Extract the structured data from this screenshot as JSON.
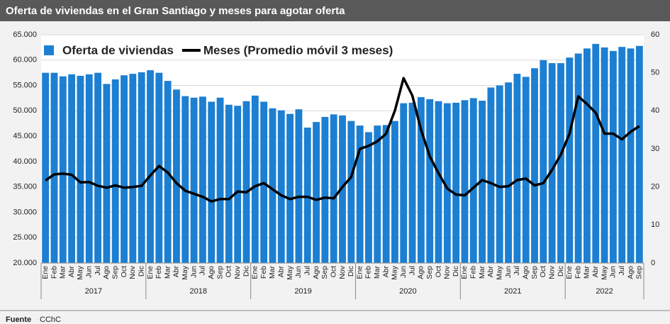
{
  "chart_data": {
    "type": "bar",
    "title": "Oferta de viviendas en el Gran Santiago y meses para agotar oferta",
    "categories": [
      "Ene",
      "Feb",
      "Mar",
      "Abr",
      "May",
      "Jun",
      "Jul",
      "Ago",
      "Sep",
      "Oct",
      "Nov",
      "Dic",
      "Ene",
      "Feb",
      "Mar",
      "Abr",
      "May",
      "Jun",
      "Jul",
      "Ago",
      "Sep",
      "Oct",
      "Nov",
      "Dic",
      "Ene",
      "Feb",
      "Mar",
      "Abr",
      "May",
      "Jun",
      "Jul",
      "Ago",
      "Sep",
      "Oct",
      "Nov",
      "Dic",
      "Ene",
      "Feb",
      "Mar",
      "Abr",
      "May",
      "Jun",
      "Jul",
      "Ago",
      "Sep",
      "Oct",
      "Nov",
      "Dic",
      "Ene",
      "Feb",
      "Mar",
      "Abr",
      "May",
      "Jun",
      "Jul",
      "Ago",
      "Sep",
      "Oct",
      "Nov",
      "Dic",
      "Ene",
      "Feb",
      "Mar",
      "Abr",
      "May",
      "Jun",
      "Jul",
      "Ago",
      "Sep"
    ],
    "groups": [
      "2017",
      "2018",
      "2019",
      "2020",
      "2021",
      "2022"
    ],
    "series": [
      {
        "name": "Oferta de viviendas",
        "type": "bar",
        "color": "#1c7fd2",
        "values": [
          57500,
          57500,
          56800,
          57200,
          56900,
          57200,
          57500,
          55300,
          56200,
          57000,
          57300,
          57600,
          58000,
          57500,
          55900,
          54200,
          52900,
          52600,
          52800,
          51800,
          52600,
          51200,
          51000,
          51900,
          53000,
          51800,
          50500,
          50100,
          49400,
          50300,
          46700,
          47800,
          48800,
          49300,
          49100,
          48000,
          47100,
          45800,
          47100,
          47200,
          48000,
          51500,
          51600,
          52700,
          52300,
          51900,
          51500,
          51600,
          52100,
          52500,
          52000,
          54600,
          55000,
          55600,
          57300,
          56700,
          58400,
          60000,
          59400,
          59400,
          60500,
          61300,
          62300,
          63200,
          62500,
          61800,
          62600,
          62300,
          62800
        ]
      },
      {
        "name": "Meses (Promedio móvil 3 meses)",
        "type": "line",
        "axis": "y2",
        "color": "#000000",
        "values": [
          21.7,
          23.3,
          23.5,
          23.2,
          21.2,
          21.3,
          20.3,
          19.8,
          20.4,
          19.8,
          20.0,
          20.3,
          23.0,
          25.5,
          23.8,
          21.0,
          19.0,
          18.2,
          17.4,
          16.2,
          16.8,
          16.8,
          18.8,
          18.6,
          20.2,
          21.0,
          19.4,
          17.8,
          16.8,
          17.4,
          17.4,
          16.6,
          17.2,
          17.0,
          20.0,
          22.6,
          30.0,
          30.8,
          32.0,
          34.0,
          40.0,
          48.6,
          44.0,
          35.0,
          28.0,
          23.6,
          19.6,
          18.0,
          17.8,
          19.8,
          21.8,
          21.0,
          20.0,
          20.2,
          21.8,
          22.2,
          20.4,
          21.0,
          24.5,
          28.5,
          34.0,
          43.8,
          41.8,
          39.5,
          34.0,
          34.0,
          32.5,
          34.5,
          36.0
        ]
      }
    ],
    "ylim": [
      20000,
      65000
    ],
    "yticks": [
      {
        "value": 20000,
        "label": "20.000"
      },
      {
        "value": 25000,
        "label": "25.000"
      },
      {
        "value": 30000,
        "label": "30.000"
      },
      {
        "value": 35000,
        "label": "35.000"
      },
      {
        "value": 40000,
        "label": "40.000"
      },
      {
        "value": 45000,
        "label": "45.000"
      },
      {
        "value": 50000,
        "label": "50.000"
      },
      {
        "value": 55000,
        "label": "55.000"
      },
      {
        "value": 60000,
        "label": "60.000"
      },
      {
        "value": 65000,
        "label": "65.000"
      }
    ],
    "y2lim": [
      0,
      60
    ],
    "y2ticks": [
      0,
      10,
      20,
      30,
      40,
      50,
      60
    ],
    "grid": true,
    "legend": "top-left",
    "source_label": "Fuente",
    "source": "CChC"
  }
}
